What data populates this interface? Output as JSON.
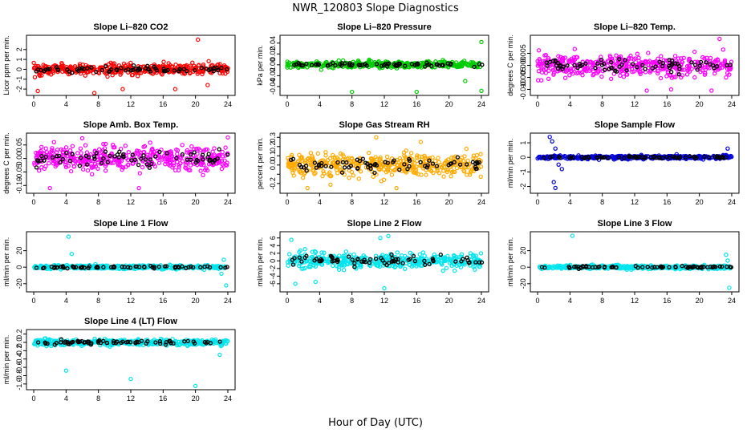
{
  "figure": {
    "title": "NWR_120803  Slope Diagnostics",
    "xlabel": "Hour of Day (UTC)"
  },
  "chart_data": [
    {
      "type": "scatter",
      "title": "Slope Li–820 CO2",
      "ylabel": "Licor ppm per min.",
      "ylim": [
        -2.4,
        3.2
      ],
      "yticks": [
        -2,
        -1,
        0,
        1,
        2
      ],
      "ytick_labels": [
        "-2",
        "-1",
        "0",
        "1",
        "2"
      ],
      "xlim": [
        -0.5,
        24.5
      ],
      "xticks": [
        0,
        4,
        8,
        12,
        16,
        20,
        24
      ],
      "color": "#ff0000",
      "spread": 0.55,
      "seed": 11,
      "outliers": [
        [
          0.5,
          -2.2
        ],
        [
          7.5,
          -2.4
        ],
        [
          11.0,
          -2.0
        ],
        [
          17.5,
          -2.0
        ],
        [
          20.3,
          3.0
        ],
        [
          21.5,
          -1.6
        ]
      ]
    },
    {
      "type": "scatter",
      "title": "Slope Li–820 Pressure",
      "ylabel": "kPa per min.",
      "ylim": [
        -0.052,
        0.05
      ],
      "yticks": [
        -0.04,
        -0.02,
        0.0,
        0.02,
        0.04
      ],
      "ytick_labels": [
        "-0.04",
        "-0.02",
        "0.00",
        "0.02",
        "0.04"
      ],
      "xlim": [
        -0.5,
        24.5
      ],
      "xticks": [
        0,
        4,
        8,
        12,
        16,
        20,
        24
      ],
      "color": "#00cc00",
      "spread": 0.006,
      "seed": 23,
      "outliers": [
        [
          8.0,
          -0.05
        ],
        [
          16.0,
          -0.05
        ],
        [
          24.0,
          -0.048
        ],
        [
          24.0,
          0.042
        ],
        [
          22.0,
          -0.03
        ]
      ]
    },
    {
      "type": "scatter",
      "title": "Slope Li–820 Temp.",
      "ylabel": "degrees C per min.",
      "ylim": [
        -0.0115,
        0.0115
      ],
      "yticks": [
        -0.01,
        -0.005,
        0.0,
        0.005
      ],
      "ytick_labels": [
        "-0.010",
        "-0.005",
        "0.000",
        "0.005"
      ],
      "xlim": [
        -0.5,
        24.5
      ],
      "xticks": [
        0,
        4,
        8,
        12,
        16,
        20,
        24
      ],
      "color": "#ff00ff",
      "spread": 0.0045,
      "seed": 37,
      "outliers": [
        [
          22.5,
          0.011
        ],
        [
          13.5,
          -0.0105
        ],
        [
          16.5,
          -0.01
        ],
        [
          21.5,
          -0.0105
        ]
      ]
    },
    {
      "type": "scatter",
      "title": "Slope Amb. Box Temp.",
      "ylabel": "degrees C per min.",
      "ylim": [
        -0.12,
        0.085
      ],
      "yticks": [
        -0.1,
        -0.05,
        0.0,
        0.05
      ],
      "ytick_labels": [
        "-0.10",
        "-0.05",
        "0.00",
        "0.05"
      ],
      "xlim": [
        -0.5,
        24.5
      ],
      "xticks": [
        0,
        4,
        8,
        12,
        16,
        20,
        24
      ],
      "color": "#ff00ff",
      "spread": 0.045,
      "seed": 41,
      "outliers": [
        [
          2.0,
          -0.11
        ],
        [
          6.0,
          0.075
        ],
        [
          13.0,
          -0.11
        ],
        [
          24.0,
          0.078
        ]
      ]
    },
    {
      "type": "scatter",
      "title": "Slope Gas Stream RH",
      "ylabel": "percent per min.",
      "ylim": [
        -0.28,
        0.32
      ],
      "yticks": [
        -0.2,
        -0.1,
        0.0,
        0.1,
        0.2,
        0.3
      ],
      "ytick_labels": [
        "-0.2",
        "",
        "0.0",
        "0.1",
        "0.2",
        "0.3"
      ],
      "xlim": [
        -0.5,
        24.5
      ],
      "xticks": [
        0,
        4,
        8,
        12,
        16,
        20,
        24
      ],
      "color": "#ffaa00",
      "spread": 0.12,
      "seed": 53,
      "outliers": [
        [
          11.0,
          0.3
        ],
        [
          2.5,
          -0.25
        ],
        [
          16.5,
          0.25
        ],
        [
          13.5,
          -0.25
        ]
      ]
    },
    {
      "type": "scatter",
      "title": "Slope Sample Flow",
      "ylabel": "ml/min per min.",
      "ylim": [
        -2.3,
        1.5
      ],
      "yticks": [
        -2,
        -1,
        0,
        1
      ],
      "ytick_labels": [
        "-2",
        "-1",
        "0",
        "1"
      ],
      "xlim": [
        -0.5,
        24.5
      ],
      "xticks": [
        0,
        4,
        8,
        12,
        16,
        20,
        24
      ],
      "color": "#0000dd",
      "spread": 0.12,
      "seed": 67,
      "outliers": [
        [
          1.5,
          1.4
        ],
        [
          1.8,
          1.1
        ],
        [
          2.2,
          0.6
        ],
        [
          2.0,
          -1.7
        ],
        [
          2.2,
          -2.1
        ],
        [
          3.0,
          -0.8
        ],
        [
          2.6,
          -0.5
        ],
        [
          23.5,
          0.6
        ]
      ]
    },
    {
      "type": "scatter",
      "title": "Slope Line 1 Flow",
      "ylabel": "ml/min per min.",
      "ylim": [
        -27,
        40
      ],
      "yticks": [
        -20,
        0,
        20
      ],
      "ytick_labels": [
        "-20",
        "0",
        "20"
      ],
      "xlim": [
        -0.5,
        24.5
      ],
      "xticks": [
        0,
        4,
        8,
        12,
        16,
        20,
        24
      ],
      "color": "#00e5ee",
      "spread": 2.2,
      "seed": 71,
      "outliers": [
        [
          4.3,
          37
        ],
        [
          4.7,
          16
        ],
        [
          23.5,
          9
        ],
        [
          23.8,
          -22
        ],
        [
          23.2,
          -8
        ]
      ]
    },
    {
      "type": "scatter",
      "title": "Slope Line 2 Flow",
      "ylabel": "ml/min per min.",
      "ylim": [
        -7.5,
        7
      ],
      "yticks": [
        -6,
        -4,
        -2,
        0,
        2,
        4,
        6
      ],
      "ytick_labels": [
        "-6",
        "-4",
        "-2",
        "0",
        "2",
        "4",
        "6"
      ],
      "xlim": [
        -0.5,
        24.5
      ],
      "xticks": [
        0,
        4,
        8,
        12,
        16,
        20,
        24
      ],
      "color": "#00e5ee",
      "spread": 1.9,
      "seed": 83,
      "outliers": [
        [
          0.5,
          5.5
        ],
        [
          3.5,
          -5.5
        ],
        [
          12.0,
          -7.2
        ],
        [
          11.5,
          6
        ],
        [
          12.5,
          6.5
        ],
        [
          1.0,
          -6.0
        ]
      ]
    },
    {
      "type": "scatter",
      "title": "Slope Line 3 Flow",
      "ylabel": "ml/min per min.",
      "ylim": [
        -27,
        40
      ],
      "yticks": [
        -20,
        0,
        20
      ],
      "ytick_labels": [
        "-20",
        "0",
        "20"
      ],
      "xlim": [
        -0.5,
        24.5
      ],
      "xticks": [
        0,
        4,
        8,
        12,
        16,
        20,
        24
      ],
      "color": "#00e5ee",
      "spread": 2.2,
      "seed": 97,
      "outliers": [
        [
          4.3,
          38
        ],
        [
          23.3,
          15
        ],
        [
          23.7,
          -25
        ],
        [
          23.5,
          8
        ]
      ]
    },
    {
      "type": "scatter",
      "title": "Slope Line 4 (LT) Flow",
      "ylabel": "ml/min per min.",
      "ylim": [
        -1.08,
        0.25
      ],
      "yticks": [
        -1.0,
        -0.8,
        -0.6,
        -0.4,
        -0.2,
        0.0,
        0.2
      ],
      "ytick_labels": [
        "-1.0",
        "-0.8",
        "-0.6",
        "-0.4",
        "-0.2",
        "0.0",
        "0.2"
      ],
      "xlim": [
        -0.5,
        24.5
      ],
      "xticks": [
        0,
        4,
        8,
        12,
        16,
        20,
        24
      ],
      "color": "#00e5ee",
      "spread": 0.07,
      "seed": 101,
      "outliers": [
        [
          4.0,
          -0.68
        ],
        [
          12.0,
          -0.88
        ],
        [
          20.0,
          -1.05
        ],
        [
          23.0,
          -0.3
        ]
      ]
    }
  ]
}
